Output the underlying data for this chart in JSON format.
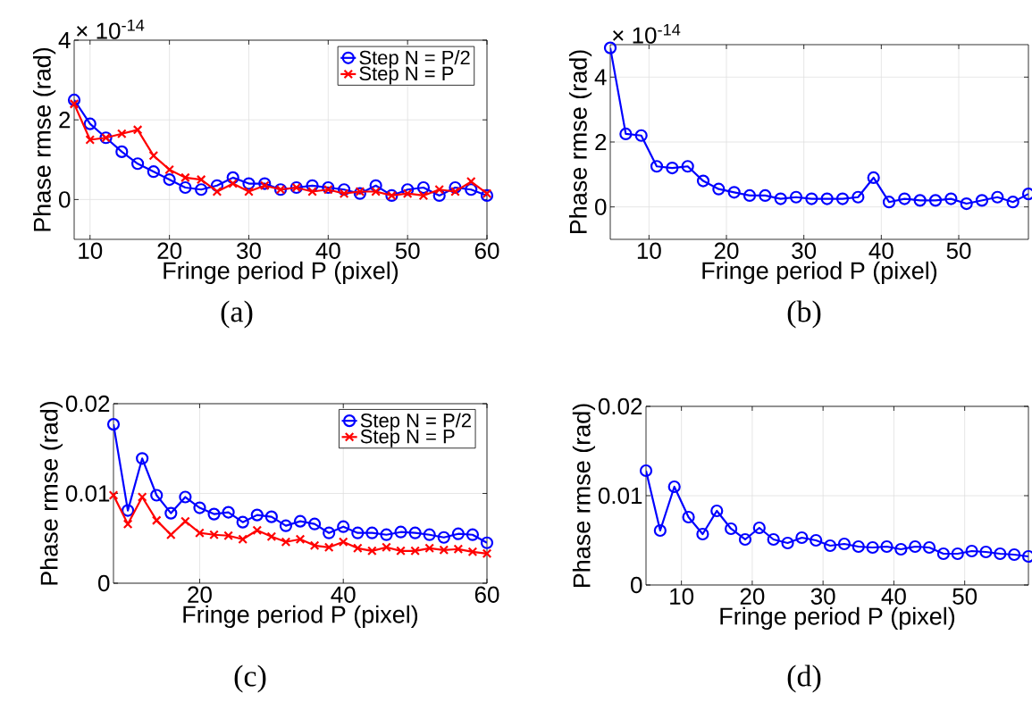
{
  "chart_data": [
    {
      "type": "line",
      "title": "(a)",
      "xlabel": "Fringe period P (pixel)",
      "ylabel": "Phase rmse (rad)",
      "annotations": [
        "× 10$^{-14}$"
      ],
      "x": [
        8,
        10,
        12,
        14,
        16,
        18,
        20,
        22,
        24,
        26,
        28,
        30,
        32,
        34,
        36,
        38,
        40,
        42,
        44,
        46,
        48,
        50,
        52,
        54,
        56,
        58,
        60
      ],
      "series": [
        {
          "name": "Step N = P/2",
          "color": "#0000ff",
          "marker": "circle",
          "values": [
            2.5,
            1.9,
            1.55,
            1.2,
            0.9,
            0.7,
            0.5,
            0.3,
            0.25,
            0.35,
            0.55,
            0.4,
            0.4,
            0.25,
            0.3,
            0.35,
            0.3,
            0.25,
            0.15,
            0.35,
            0.1,
            0.25,
            0.3,
            0.1,
            0.3,
            0.25,
            0.1
          ]
        },
        {
          "name": "Step N = P",
          "color": "#ff0000",
          "marker": "cross",
          "values": [
            2.4,
            1.5,
            1.55,
            1.65,
            1.75,
            1.1,
            0.75,
            0.55,
            0.5,
            0.2,
            0.4,
            0.2,
            0.35,
            0.25,
            0.3,
            0.2,
            0.25,
            0.15,
            0.2,
            0.2,
            0.1,
            0.15,
            0.1,
            0.25,
            0.2,
            0.45,
            0.15
          ]
        }
      ],
      "xlim": [
        8,
        60
      ],
      "ylim": [
        -1,
        4
      ],
      "xticks": [
        10,
        20,
        30,
        40,
        50,
        60
      ],
      "yticks": [
        0,
        2,
        4
      ],
      "grid": true,
      "legend": "top right"
    },
    {
      "type": "line",
      "title": "(b)",
      "xlabel": "Fringe period P (pixel)",
      "ylabel": "Phase rmse (rad)",
      "annotations": [
        "× 10$^{-14}$"
      ],
      "x": [
        5,
        7,
        9,
        11,
        13,
        15,
        17,
        19,
        21,
        23,
        25,
        27,
        29,
        31,
        33,
        35,
        37,
        39,
        41,
        43,
        45,
        47,
        49,
        51,
        53,
        55,
        57,
        59
      ],
      "series": [
        {
          "color": "#0000ff",
          "marker": "circle",
          "values": [
            4.9,
            2.25,
            2.2,
            1.25,
            1.2,
            1.25,
            0.8,
            0.55,
            0.45,
            0.35,
            0.35,
            0.25,
            0.3,
            0.25,
            0.25,
            0.25,
            0.3,
            0.9,
            0.15,
            0.25,
            0.2,
            0.2,
            0.25,
            0.1,
            0.2,
            0.3,
            0.15,
            0.4
          ]
        }
      ],
      "xlim": [
        5,
        59
      ],
      "ylim": [
        -1,
        5
      ],
      "xticks": [
        10,
        20,
        30,
        40,
        50
      ],
      "yticks": [
        0,
        2,
        4
      ],
      "grid": true
    },
    {
      "type": "line",
      "title": "(c)",
      "xlabel": "Fringe period P (pixel)",
      "ylabel": "Phase rmse (rad)",
      "x": [
        8,
        10,
        12,
        14,
        16,
        18,
        20,
        22,
        24,
        26,
        28,
        30,
        32,
        34,
        36,
        38,
        40,
        42,
        44,
        46,
        48,
        50,
        52,
        54,
        56,
        58,
        60
      ],
      "series": [
        {
          "name": "Step N = P/2",
          "color": "#0000ff",
          "marker": "circle",
          "values": [
            0.0177,
            0.0081,
            0.0139,
            0.0098,
            0.0078,
            0.0096,
            0.0084,
            0.0077,
            0.0079,
            0.0068,
            0.0076,
            0.0074,
            0.0064,
            0.0069,
            0.0066,
            0.0056,
            0.0063,
            0.0056,
            0.0056,
            0.0054,
            0.0057,
            0.0056,
            0.0054,
            0.0051,
            0.0055,
            0.0054,
            0.0045
          ]
        },
        {
          "name": "Step N = P",
          "color": "#ff0000",
          "marker": "cross",
          "values": [
            0.0098,
            0.0066,
            0.0096,
            0.007,
            0.0054,
            0.0069,
            0.0056,
            0.0054,
            0.0053,
            0.0049,
            0.0059,
            0.0052,
            0.0046,
            0.0049,
            0.0042,
            0.004,
            0.0046,
            0.0039,
            0.0036,
            0.004,
            0.0036,
            0.0036,
            0.0039,
            0.0037,
            0.0038,
            0.0035,
            0.0033
          ]
        }
      ],
      "xlim": [
        8,
        60
      ],
      "ylim": [
        0,
        0.02
      ],
      "xticks": [
        20,
        40,
        60
      ],
      "yticks": [
        0,
        0.01,
        0.02
      ],
      "grid": true,
      "legend": "top right"
    },
    {
      "type": "line",
      "title": "(d)",
      "xlabel": "Fringe period P (pixel)",
      "ylabel": "Phase rmse (rad)",
      "x": [
        5,
        7,
        9,
        11,
        13,
        15,
        17,
        19,
        21,
        23,
        25,
        27,
        29,
        31,
        33,
        35,
        37,
        39,
        41,
        43,
        45,
        47,
        49,
        51,
        53,
        55,
        57,
        59
      ],
      "series": [
        {
          "color": "#0000ff",
          "marker": "circle",
          "values": [
            0.0128,
            0.0061,
            0.011,
            0.0076,
            0.0057,
            0.0083,
            0.0063,
            0.0051,
            0.0064,
            0.0051,
            0.0047,
            0.0053,
            0.005,
            0.0044,
            0.0046,
            0.0043,
            0.0042,
            0.0043,
            0.004,
            0.0043,
            0.0042,
            0.0035,
            0.0035,
            0.0038,
            0.0037,
            0.0035,
            0.0034,
            0.0032
          ]
        }
      ],
      "xlim": [
        5,
        59
      ],
      "ylim": [
        0,
        0.02
      ],
      "xticks": [
        10,
        20,
        30,
        40,
        50
      ],
      "yticks": [
        0,
        0.01,
        0.02
      ],
      "grid": true
    }
  ]
}
